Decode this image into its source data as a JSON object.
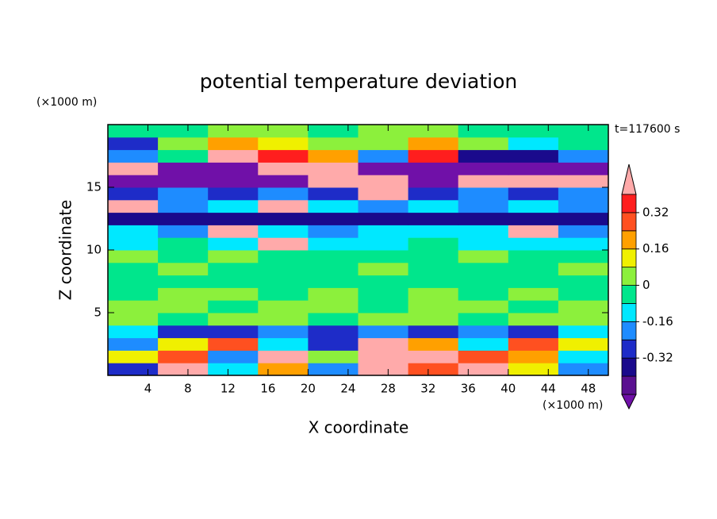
{
  "chart_data": {
    "type": "contourf",
    "title": "potential temperature deviation",
    "x_label": "X coordinate",
    "y_label": "Z coordinate",
    "x_unit_label": "(×1000 m)",
    "y_unit_label": "(×1000 m)",
    "time_label": "t=117600 s",
    "xlim": [
      0,
      50
    ],
    "ylim": [
      0,
      20
    ],
    "xticks": [
      4,
      8,
      12,
      16,
      20,
      24,
      28,
      32,
      36,
      40,
      44,
      48
    ],
    "yticks": [
      5,
      10,
      15
    ],
    "levels": [
      -0.48,
      -0.4,
      -0.32,
      -0.24,
      -0.16,
      -0.08,
      0,
      0.08,
      0.16,
      0.24,
      0.32,
      0.4
    ],
    "colors": [
      "#7010a8",
      "#5a1090",
      "#1a0a8c",
      "#1e2cc8",
      "#1e8cff",
      "#00e8ff",
      "#00e68c",
      "#8cf03c",
      "#f0f000",
      "#ffa000",
      "#ff5020",
      "#ff1e1e",
      "#ffaaaa"
    ],
    "colorbar_ticks": [
      -0.32,
      -0.16,
      0,
      0.16,
      0.32
    ],
    "z": [
      [
        -0.3,
        0.5,
        -0.1,
        0.2,
        -0.2,
        0.5,
        0.3,
        0.4,
        0.1,
        -0.2
      ],
      [
        0.1,
        0.3,
        -0.2,
        0.5,
        0.0,
        0.5,
        0.4,
        0.3,
        0.2,
        -0.1
      ],
      [
        -0.2,
        0.1,
        0.3,
        -0.1,
        -0.3,
        0.5,
        0.2,
        -0.1,
        0.3,
        0.1
      ],
      [
        -0.1,
        -0.3,
        -0.3,
        -0.2,
        -0.3,
        -0.2,
        -0.3,
        -0.2,
        -0.3,
        -0.1
      ],
      [
        0.03,
        -0.03,
        0.03,
        0.03,
        -0.03,
        0.03,
        0.03,
        -0.03,
        0.03,
        0.03
      ],
      [
        0.03,
        0.03,
        -0.03,
        0.03,
        0.03,
        -0.03,
        0.03,
        0.03,
        -0.03,
        0.03
      ],
      [
        -0.03,
        0.03,
        0.03,
        -0.03,
        0.03,
        -0.03,
        0.03,
        -0.03,
        0.03,
        -0.03
      ],
      [
        -0.03,
        -0.03,
        -0.03,
        -0.03,
        -0.03,
        -0.03,
        -0.03,
        -0.03,
        -0.03,
        -0.03
      ],
      [
        -0.03,
        0.03,
        -0.03,
        -0.03,
        -0.03,
        0.03,
        -0.03,
        -0.03,
        -0.03,
        0.03
      ],
      [
        0.03,
        -0.03,
        0.03,
        -0.03,
        -0.03,
        -0.03,
        -0.03,
        0.03,
        -0.03,
        -0.03
      ],
      [
        -0.12,
        -0.03,
        -0.12,
        0.5,
        -0.12,
        -0.12,
        -0.03,
        -0.12,
        -0.12,
        -0.12
      ],
      [
        -0.12,
        -0.2,
        0.5,
        -0.12,
        -0.2,
        -0.12,
        -0.12,
        -0.12,
        0.5,
        -0.2
      ],
      [
        -0.36,
        -0.36,
        -0.36,
        -0.36,
        -0.36,
        -0.36,
        -0.36,
        -0.36,
        -0.36,
        -0.36
      ],
      [
        0.5,
        -0.2,
        -0.12,
        0.5,
        -0.12,
        -0.2,
        -0.12,
        -0.2,
        -0.12,
        -0.2
      ],
      [
        -0.28,
        -0.2,
        -0.28,
        -0.2,
        -0.28,
        0.5,
        -0.28,
        -0.2,
        -0.28,
        -0.2
      ],
      [
        -0.5,
        -0.5,
        -0.5,
        -0.5,
        0.5,
        0.5,
        -0.5,
        0.5,
        0.5,
        0.5
      ],
      [
        0.5,
        -0.5,
        -0.5,
        0.5,
        0.5,
        -0.5,
        -0.5,
        -0.5,
        -0.5,
        -0.5
      ],
      [
        -0.2,
        -0.03,
        0.5,
        0.36,
        0.2,
        -0.2,
        0.36,
        -0.36,
        -0.36,
        -0.2
      ],
      [
        -0.28,
        0.03,
        0.2,
        0.12,
        0.03,
        0.03,
        0.2,
        0.03,
        -0.12,
        -0.03
      ],
      [
        -0.03,
        -0.03,
        0.03,
        0.03,
        -0.03,
        0.03,
        0.03,
        -0.03,
        -0.03,
        -0.03
      ]
    ]
  }
}
